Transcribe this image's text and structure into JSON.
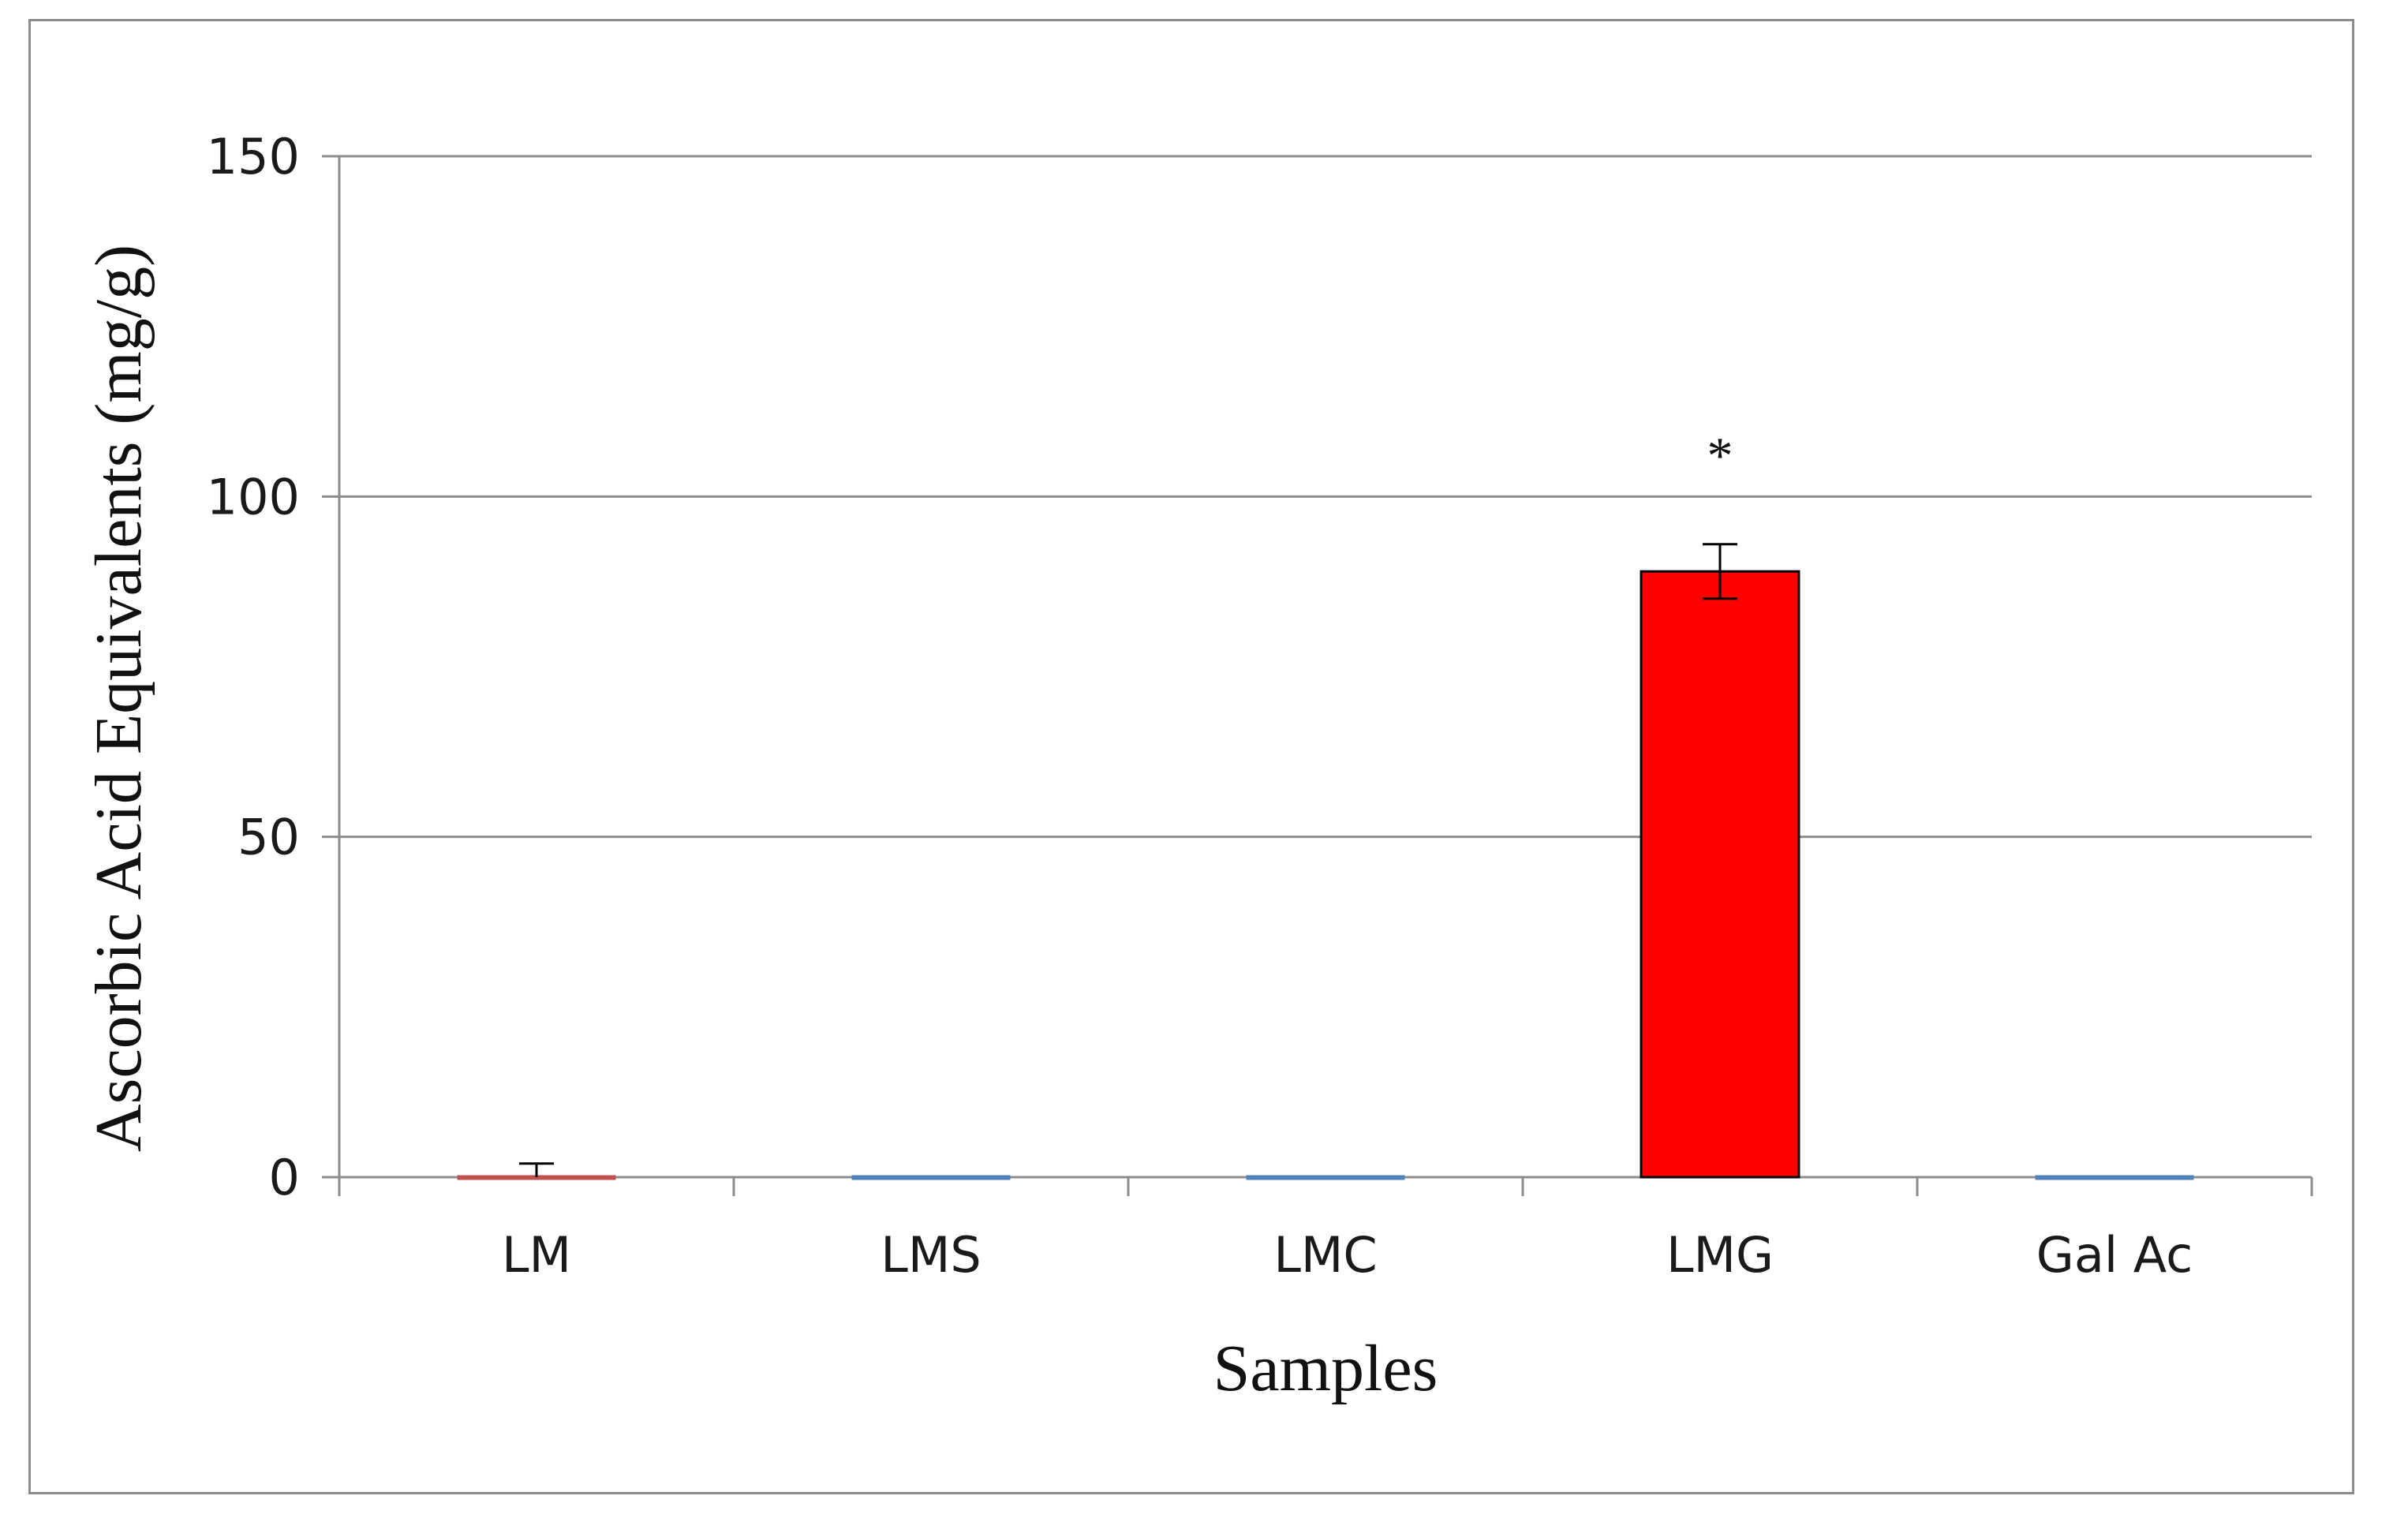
{
  "chart_data": {
    "type": "bar",
    "categories": [
      "LM",
      "LMS",
      "LMC",
      "LMG",
      "Gal Ac"
    ],
    "values": [
      0,
      0,
      0,
      89,
      0
    ],
    "errors": [
      2,
      0,
      0,
      4,
      0
    ],
    "bar_colors": [
      "#c0504d",
      "#4f81bd",
      "#4f81bd",
      "#ff0000",
      "#4f81bd"
    ],
    "annotations": [
      {
        "category": "LMG",
        "text": "*"
      }
    ],
    "title": "",
    "xlabel": "Samples",
    "ylabel": "Ascorbic Acid Equivalents (mg/g)",
    "ylim": [
      0,
      150
    ],
    "yticks": [
      0,
      50,
      100,
      150
    ],
    "grid": true,
    "legend": "none"
  }
}
